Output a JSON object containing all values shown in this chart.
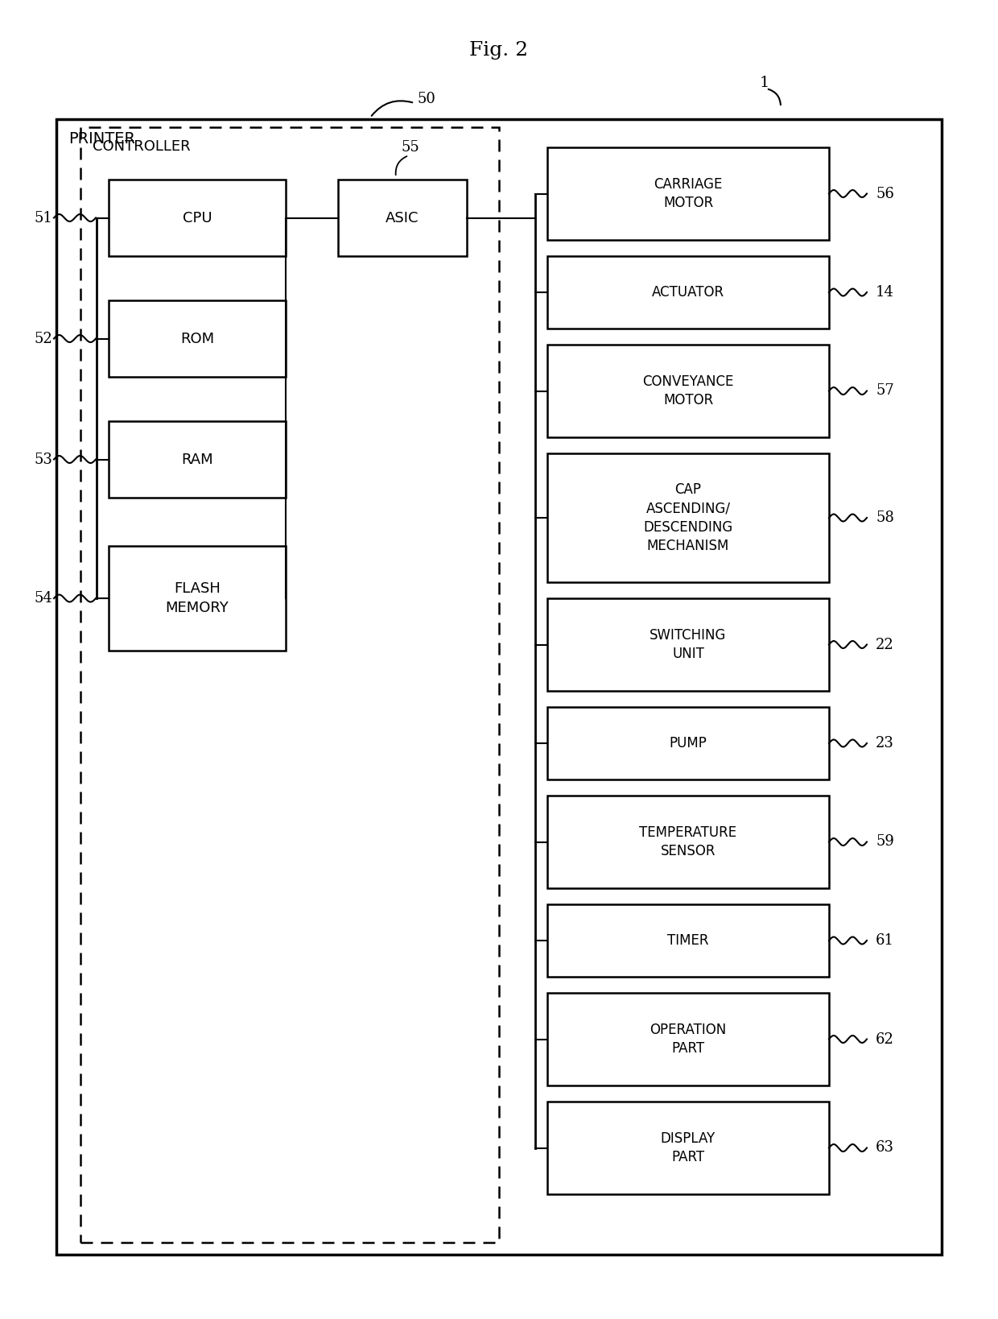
{
  "title": "Fig. 2",
  "bg_color": "#ffffff",
  "text_color": "#000000",
  "printer_label": "PRINTER",
  "controller_label": "CONTROLLER",
  "printer_ref": "1",
  "controller_ref": "50",
  "asic_ref": "55",
  "asic_label": "ASIC",
  "left_boxes": [
    {
      "label": "CPU",
      "ref": "51"
    },
    {
      "label": "ROM",
      "ref": "52"
    },
    {
      "label": "RAM",
      "ref": "53"
    },
    {
      "label": "FLASH\nMEMORY",
      "ref": "54"
    }
  ],
  "right_boxes": [
    {
      "label": "CARRIAGE\nMOTOR",
      "ref": "56",
      "nlines": 2
    },
    {
      "label": "ACTUATOR",
      "ref": "14",
      "nlines": 1
    },
    {
      "label": "CONVEYANCE\nMOTOR",
      "ref": "57",
      "nlines": 2
    },
    {
      "label": "CAP\nASCENDING/\nDESCENDING\nMECHANISM",
      "ref": "58",
      "nlines": 4
    },
    {
      "label": "SWITCHING\nUNIT",
      "ref": "22",
      "nlines": 2
    },
    {
      "label": "PUMP",
      "ref": "23",
      "nlines": 1
    },
    {
      "label": "TEMPERATURE\nSENSOR",
      "ref": "59",
      "nlines": 2
    },
    {
      "label": "TIMER",
      "ref": "61",
      "nlines": 1
    },
    {
      "label": "OPERATION\nPART",
      "ref": "62",
      "nlines": 2
    },
    {
      "label": "DISPLAY\nPART",
      "ref": "63",
      "nlines": 2
    }
  ]
}
